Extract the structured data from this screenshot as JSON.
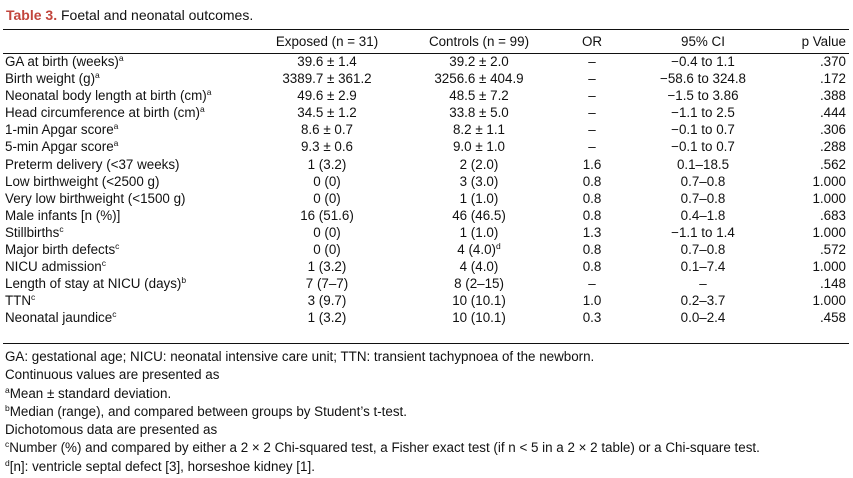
{
  "caption": {
    "label": "Table 3.",
    "text": "Foetal and neonatal outcomes."
  },
  "columns": [
    "",
    "Exposed (n = 31)",
    "Controls (n = 99)",
    "OR",
    "95% CI",
    "p Value"
  ],
  "rows": [
    {
      "label": "GA at birth (weeks)",
      "sup": "a",
      "exposed": "39.6 ± 1.4",
      "exposed_sup": "",
      "controls": "39.2 ± 2.0",
      "controls_sup": "",
      "or": "–",
      "ci": "−0.4 to 1.1",
      "p": ".370"
    },
    {
      "label": "Birth weight (g)",
      "sup": "a",
      "exposed": "3389.7 ± 361.2",
      "exposed_sup": "",
      "controls": "3256.6 ± 404.9",
      "controls_sup": "",
      "or": "–",
      "ci": "−58.6 to 324.8",
      "p": ".172"
    },
    {
      "label": "Neonatal body length at birth (cm)",
      "sup": "a",
      "exposed": "49.6 ± 2.9",
      "exposed_sup": "",
      "controls": "48.5 ± 7.2",
      "controls_sup": "",
      "or": "–",
      "ci": "−1.5 to 3.86",
      "p": ".388"
    },
    {
      "label": "Head circumference at birth (cm)",
      "sup": "a",
      "exposed": "34.5 ± 1.2",
      "exposed_sup": "",
      "controls": "33.8 ± 5.0",
      "controls_sup": "",
      "or": "–",
      "ci": "−1.1 to 2.5",
      "p": ".444"
    },
    {
      "label": "1-min Apgar score",
      "sup": "a",
      "exposed": "8.6 ± 0.7",
      "exposed_sup": "",
      "controls": "8.2 ± 1.1",
      "controls_sup": "",
      "or": "–",
      "ci": "−0.1 to 0.7",
      "p": ".306"
    },
    {
      "label": "5-min Apgar score",
      "sup": "a",
      "exposed": "9.3 ± 0.6",
      "exposed_sup": "",
      "controls": "9.0 ± 1.0",
      "controls_sup": "",
      "or": "–",
      "ci": "−0.1 to 0.7",
      "p": ".288"
    },
    {
      "label": "Preterm delivery (<37 weeks)",
      "sup": "",
      "exposed": "1 (3.2)",
      "exposed_sup": "",
      "controls": "2 (2.0)",
      "controls_sup": "",
      "or": "1.6",
      "ci": "0.1–18.5",
      "p": ".562"
    },
    {
      "label": "Low birthweight (<2500 g)",
      "sup": "",
      "exposed": "0 (0)",
      "exposed_sup": "",
      "controls": "3 (3.0)",
      "controls_sup": "",
      "or": "0.8",
      "ci": "0.7–0.8",
      "p": "1.000"
    },
    {
      "label": "Very low birthweight (<1500 g)",
      "sup": "",
      "exposed": "0 (0)",
      "exposed_sup": "",
      "controls": "1 (1.0)",
      "controls_sup": "",
      "or": "0.8",
      "ci": "0.7–0.8",
      "p": "1.000"
    },
    {
      "label": "Male infants [n (%)]",
      "sup": "",
      "exposed": "16 (51.6)",
      "exposed_sup": "",
      "controls": "46 (46.5)",
      "controls_sup": "",
      "or": "0.8",
      "ci": "0.4–1.8",
      "p": ".683"
    },
    {
      "label": "Stillbirths",
      "sup": "c",
      "exposed": "0 (0)",
      "exposed_sup": "",
      "controls": "1 (1.0)",
      "controls_sup": "",
      "or": "1.3",
      "ci": "−1.1 to 1.4",
      "p": "1.000"
    },
    {
      "label": "Major birth defects",
      "sup": "c",
      "exposed": "0 (0)",
      "exposed_sup": "",
      "controls": "4 (4.0)",
      "controls_sup": "d",
      "or": "0.8",
      "ci": "0.7–0.8",
      "p": ".572"
    },
    {
      "label": "NICU admission",
      "sup": "c",
      "exposed": "1 (3.2)",
      "exposed_sup": "",
      "controls": "4 (4.0)",
      "controls_sup": "",
      "or": "0.8",
      "ci": "0.1–7.4",
      "p": "1.000"
    },
    {
      "label": "Length of stay at NICU (days)",
      "sup": "b",
      "exposed": "7 (7–7)",
      "exposed_sup": "",
      "controls": "8 (2–15)",
      "controls_sup": "",
      "or": "–",
      "ci": "–",
      "p": ".148"
    },
    {
      "label": "TTN",
      "sup": "c",
      "exposed": "3 (9.7)",
      "exposed_sup": "",
      "controls": "10 (10.1)",
      "controls_sup": "",
      "or": "1.0",
      "ci": "0.2–3.7",
      "p": "1.000"
    },
    {
      "label": "Neonatal jaundice",
      "sup": "c",
      "exposed": "1 (3.2)",
      "exposed_sup": "",
      "controls": "10 (10.1)",
      "controls_sup": "",
      "or": "0.3",
      "ci": "0.0–2.4",
      "p": ".458"
    }
  ],
  "notes": [
    {
      "sup": "",
      "text": "GA: gestational age; NICU: neonatal intensive care unit; TTN: transient tachypnoea of the newborn."
    },
    {
      "sup": "",
      "text": "Continuous values are presented as"
    },
    {
      "sup": "a",
      "text": "Mean ± standard deviation."
    },
    {
      "sup": "b",
      "text": "Median (range), and compared between groups by Student’s t-test."
    },
    {
      "sup": "",
      "text": "Dichotomous data are presented as"
    },
    {
      "sup": "c",
      "text": "Number (%) and compared by either a 2 × 2 Chi-squared test, a Fisher exact test (if n < 5 in a 2 × 2 table) or a Chi-square test."
    },
    {
      "sup": "d",
      "text": "[n]: ventricle septal defect [3], horseshoe kidney [1]."
    }
  ]
}
